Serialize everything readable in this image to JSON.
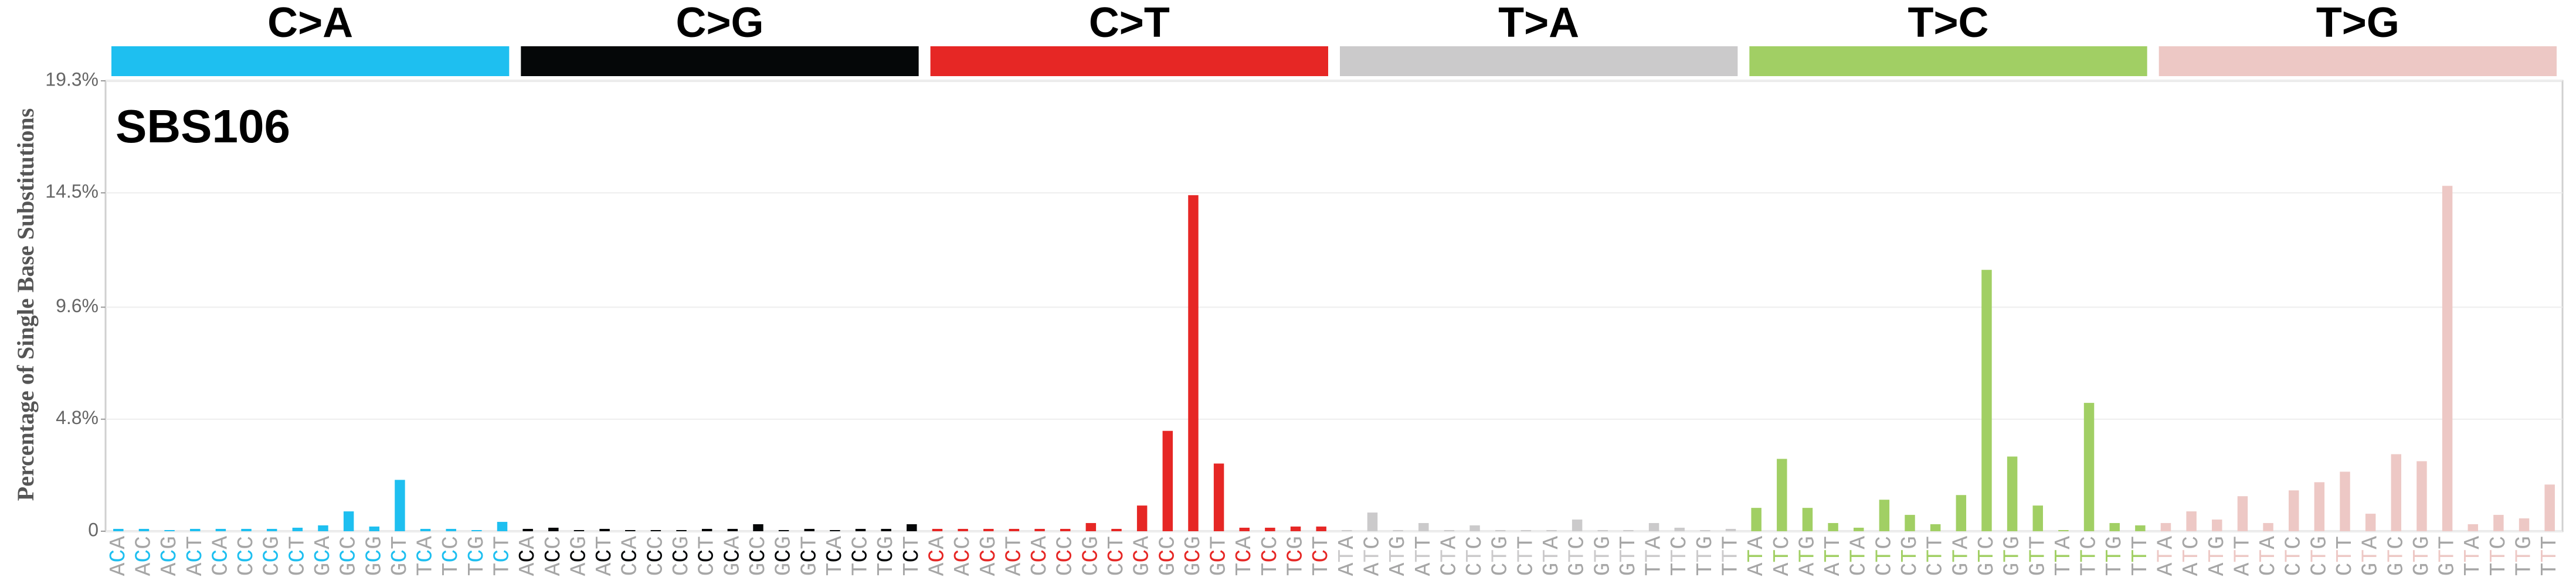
{
  "chart_data": {
    "type": "bar",
    "title": "SBS106",
    "y_label": "Percentage of Single Base Substitutions",
    "ylim": [
      0,
      19.3
    ],
    "yticks": [
      0,
      {
        "value": 4.8,
        "label": "4.8%"
      },
      {
        "value": 9.6,
        "label": "9.6%"
      },
      {
        "value": 14.5,
        "label": "14.5%"
      },
      {
        "value": 19.3,
        "label": "19.3%"
      }
    ],
    "grid": true,
    "groups": [
      {
        "name": "C>A",
        "color": "#1ebff0",
        "categories": [
          "ACA",
          "ACC",
          "ACG",
          "ACT",
          "CCA",
          "CCC",
          "CCG",
          "CCT",
          "GCA",
          "GCC",
          "GCG",
          "GCT",
          "TCA",
          "TCC",
          "TCG",
          "TCT"
        ],
        "values": [
          0.1,
          0.1,
          0.05,
          0.1,
          0.1,
          0.1,
          0.1,
          0.15,
          0.25,
          0.85,
          0.2,
          2.2,
          0.1,
          0.1,
          0.05,
          0.4
        ]
      },
      {
        "name": "C>G",
        "color": "#050708",
        "categories": [
          "ACA",
          "ACC",
          "ACG",
          "ACT",
          "CCA",
          "CCC",
          "CCG",
          "CCT",
          "GCA",
          "GCC",
          "GCG",
          "GCT",
          "TCA",
          "TCC",
          "TCG",
          "TCT"
        ],
        "values": [
          0.1,
          0.15,
          0.05,
          0.1,
          0.05,
          0.05,
          0.05,
          0.1,
          0.1,
          0.3,
          0.05,
          0.1,
          0.05,
          0.1,
          0.1,
          0.3
        ]
      },
      {
        "name": "C>T",
        "color": "#e62725",
        "categories": [
          "ACA",
          "ACC",
          "ACG",
          "ACT",
          "CCA",
          "CCC",
          "CCG",
          "CCT",
          "GCA",
          "GCC",
          "GCG",
          "GCT",
          "TCA",
          "TCC",
          "TCG",
          "TCT"
        ],
        "values": [
          0.1,
          0.1,
          0.1,
          0.1,
          0.1,
          0.1,
          0.35,
          0.1,
          1.1,
          4.3,
          14.4,
          2.9,
          0.15,
          0.15,
          0.2,
          0.2
        ]
      },
      {
        "name": "T>A",
        "color": "#cbcacb",
        "categories": [
          "ATA",
          "ATC",
          "ATG",
          "ATT",
          "CTA",
          "CTC",
          "CTG",
          "CTT",
          "GTA",
          "GTC",
          "GTG",
          "GTT",
          "TTA",
          "TTC",
          "TTG",
          "TTT"
        ],
        "values": [
          0.05,
          0.8,
          0.05,
          0.35,
          0.05,
          0.25,
          0.05,
          0.05,
          0.05,
          0.5,
          0.05,
          0.05,
          0.35,
          0.15,
          0.05,
          0.1
        ]
      },
      {
        "name": "T>C",
        "color": "#a1cf64",
        "categories": [
          "ATA",
          "ATC",
          "ATG",
          "ATT",
          "CTA",
          "CTC",
          "CTG",
          "CTT",
          "GTA",
          "GTC",
          "GTG",
          "GTT",
          "TTA",
          "TTC",
          "TTG",
          "TTT"
        ],
        "values": [
          1.0,
          3.1,
          1.0,
          0.35,
          0.15,
          1.35,
          0.7,
          0.3,
          1.55,
          11.2,
          3.2,
          1.1,
          0.05,
          5.5,
          0.35,
          0.25
        ]
      },
      {
        "name": "T>G",
        "color": "#edc8c5",
        "categories": [
          "ATA",
          "ATC",
          "ATG",
          "ATT",
          "CTA",
          "CTC",
          "CTG",
          "CTT",
          "GTA",
          "GTC",
          "GTG",
          "GTT",
          "TTA",
          "TTC",
          "TTG",
          "TTT"
        ],
        "values": [
          0.35,
          0.85,
          0.5,
          1.5,
          0.35,
          1.75,
          2.1,
          2.55,
          0.75,
          3.3,
          3.0,
          14.8,
          0.3,
          0.7,
          0.55,
          2.0
        ]
      }
    ]
  }
}
